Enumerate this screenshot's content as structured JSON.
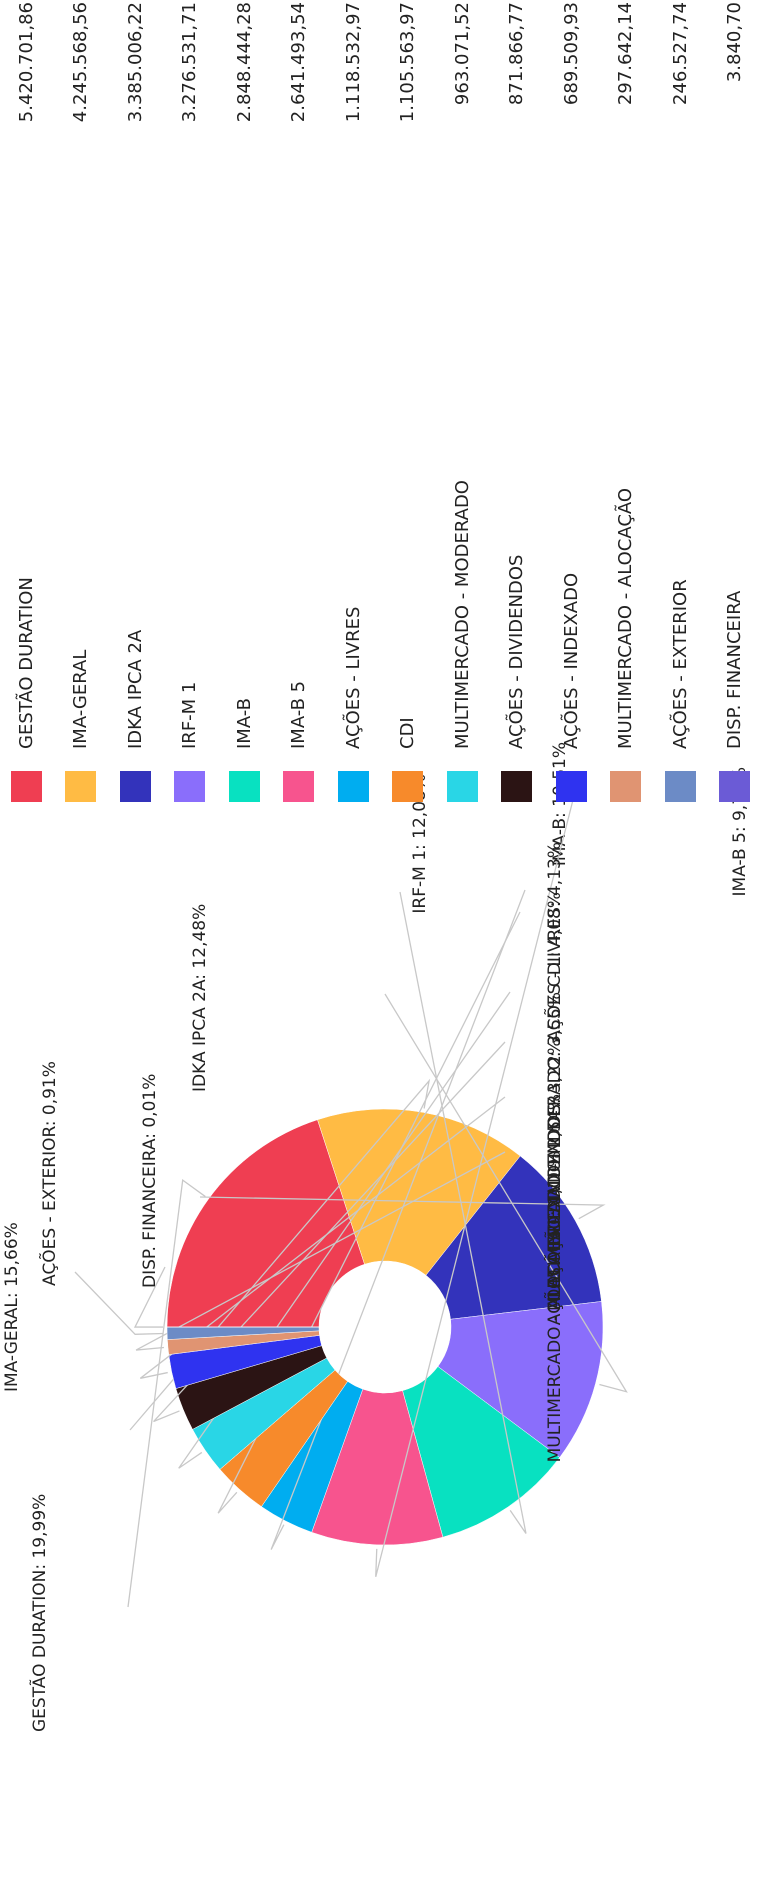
{
  "chart_data": {
    "type": "pie",
    "donut": true,
    "legend_position": "right",
    "slices": [
      {
        "label": "GESTÃO DURATION",
        "percent_label": "19,99%",
        "value": 19.99,
        "amount": "5.420.701,86",
        "color": "#EF3E52"
      },
      {
        "label": "IMA-GERAL",
        "percent_label": "15,66%",
        "value": 15.66,
        "amount": "4.245.568,56",
        "color": "#FFBB44"
      },
      {
        "label": "IDKA IPCA 2A",
        "percent_label": "12,48%",
        "value": 12.48,
        "amount": "3.385.006,22",
        "color": "#3333BB"
      },
      {
        "label": "IRF-M 1",
        "percent_label": "12,08%",
        "value": 12.08,
        "amount": "3.276.531,71",
        "color": "#8A6EFB"
      },
      {
        "label": "IMA-B",
        "percent_label": "10,51%",
        "value": 10.51,
        "amount": "2.848.444,28",
        "color": "#08E1C1"
      },
      {
        "label": "IMA-B 5",
        "percent_label": "9,74%",
        "value": 9.74,
        "amount": "2.641.493,54",
        "color": "#F7548E"
      },
      {
        "label": "AÇÕES - LIVRES",
        "percent_label": "4,13%",
        "value": 4.13,
        "amount": "1.118.532,97",
        "color": "#00ADF0"
      },
      {
        "label": "CDI",
        "percent_label": "4,08%",
        "value": 4.08,
        "amount": "1.105.563,97",
        "color": "#F78A2B"
      },
      {
        "label": "MULTIMERCADO - MODERADO",
        "percent_label": "3,55%",
        "value": 3.55,
        "amount": "963.071,52",
        "color": "#29D6E6"
      },
      {
        "label": "AÇÕES - DIVIDENDOS",
        "percent_label": "3,22%",
        "value": 3.22,
        "amount": "871.866,77",
        "color": "#2B1414"
      },
      {
        "label": "AÇÕES - INDEXADO",
        "percent_label": "2,54%",
        "value": 2.54,
        "amount": "689.509,93",
        "color": "#2F33F0"
      },
      {
        "label": "MULTIMERCADO - ALOCAÇÃO",
        "percent_label": "1,10%",
        "value": 1.1,
        "amount": "297.642,14",
        "color": "#E09472"
      },
      {
        "label": "AÇÕES - EXTERIOR",
        "percent_label": "0,91%",
        "value": 0.91,
        "amount": "246.527,74",
        "color": "#6C8BC6"
      },
      {
        "label": "DISP. FINANCEIRA",
        "percent_label": "0,01%",
        "value": 0.01,
        "amount": "3.840,70",
        "color": "#6B5BD6"
      }
    ]
  }
}
